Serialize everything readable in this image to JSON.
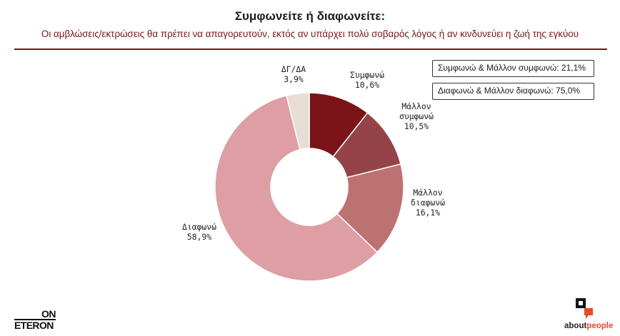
{
  "header": {
    "title": "Συμφωνείτε ή διαφωνείτε:",
    "subtitle": "Οι αμβλώσεις/εκτρώσεις θα πρέπει να απαγορευτούν, εκτός αν υπάρχει πολύ σοβαρός λόγος ή αν κινδυνεύει η ζωή της εγκύου"
  },
  "summary": {
    "agree": "Συμφωνώ & Μάλλον συμφωνώ: 21,1%",
    "disagree": "Διαφωνώ & Μάλλον διαφωνώ: 75,0%"
  },
  "chart_data": {
    "type": "pie",
    "variant": "donut",
    "start": "12 o'clock, clockwise",
    "slices": [
      {
        "name": "Συμφωνώ",
        "value": 10.6,
        "label": [
          "Συμφωνώ",
          "10,6%"
        ],
        "color": "#7a1418"
      },
      {
        "name": "Μάλλον συμφωνώ",
        "value": 10.5,
        "label": [
          "Μάλλον",
          "συμφωνώ",
          "10,5%"
        ],
        "color": "#944448"
      },
      {
        "name": "Μάλλον διαφωνώ",
        "value": 16.1,
        "label": [
          "Μάλλον",
          "διαφωνώ",
          "16,1%"
        ],
        "color": "#bd7272"
      },
      {
        "name": "Διαφωνώ",
        "value": 58.9,
        "label": [
          "Διαφωνώ",
          "58,9%"
        ],
        "color": "#dd9ea4"
      },
      {
        "name": "ΔΓ/ΔΑ",
        "value": 3.9,
        "label": [
          "ΔΓ/ΔΑ",
          "3,9%"
        ],
        "color": "#e8ded6"
      }
    ]
  },
  "logos": {
    "left_top": "ON",
    "left_bottom": "ETERON",
    "right_prefix": "about",
    "right_suffix": "people"
  }
}
